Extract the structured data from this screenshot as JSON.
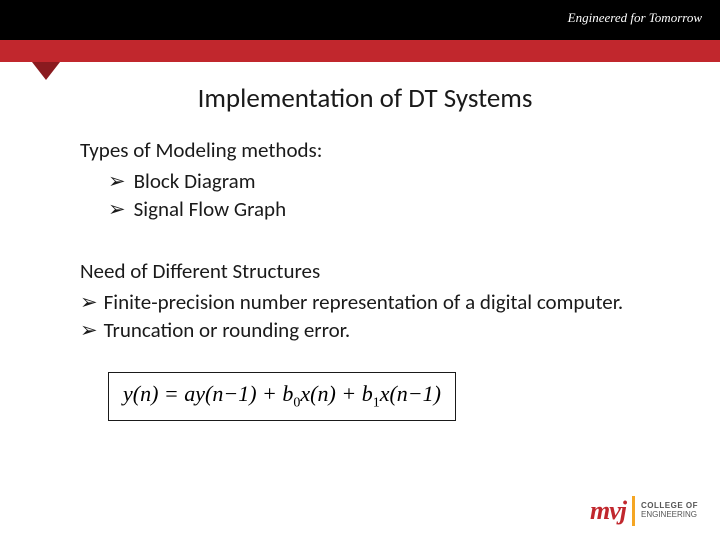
{
  "header": {
    "tagline": "Engineered for Tomorrow",
    "accent_color": "#c1272d",
    "top_bar_color": "#000000",
    "fold_color": "#8a1a1f"
  },
  "slide": {
    "title": "Implementation of DT Systems",
    "section1_heading": "Types of Modeling methods:",
    "section1_items": [
      "Block Diagram",
      "Signal Flow Graph"
    ],
    "section2_heading": "Need of Different Structures",
    "section2_items": [
      "Finite-precision number representation of a digital computer.",
      "Truncation or rounding error."
    ],
    "formula": {
      "lhs": "y(n)",
      "rhs_terms": [
        {
          "coef": "a",
          "var": "y(n−1)"
        },
        {
          "coef": "b",
          "sub": "0",
          "var": "x(n)"
        },
        {
          "coef": "b",
          "sub": "1",
          "var": "x(n−1)"
        }
      ]
    }
  },
  "logo": {
    "mark": "mvj",
    "line1": "COLLEGE OF",
    "line2": "ENGINEERING"
  },
  "colors": {
    "text": "#1a1a1a",
    "background": "#ffffff",
    "logo_red": "#c1272d",
    "logo_gold": "#f5a623"
  }
}
